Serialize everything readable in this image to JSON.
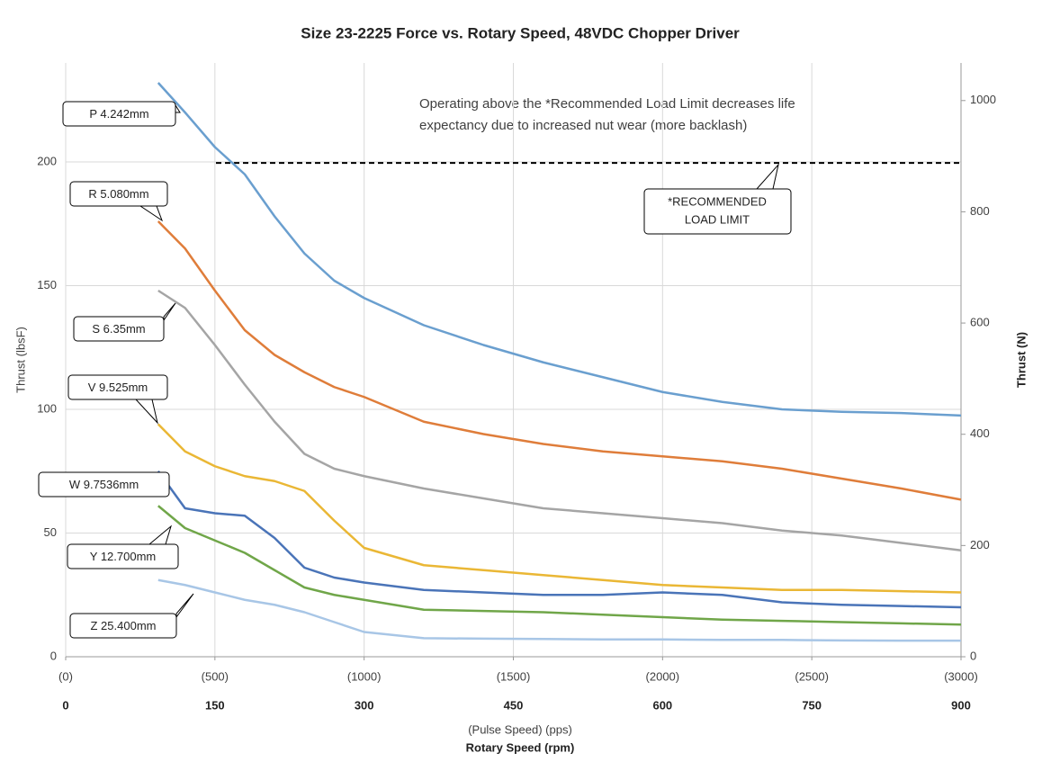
{
  "chart_data": {
    "type": "line",
    "title": "Size 23-2225 Force vs. Rotary Speed, 48VDC Chopper Driver",
    "x_label": "Rotary Speed (rpm)",
    "x2_label": "(Pulse Speed) (pps)",
    "y_label": "Thrust (lbsF)",
    "y2_label": "Thrust (N)",
    "annotation": [
      "Operating above the *Recommended Load Limit decreases life",
      "expectancy due to increased nut wear (more backlash)"
    ],
    "reference_line": {
      "value": 199.6,
      "label": [
        "*RECOMMENDED",
        "LOAD LIMIT"
      ]
    },
    "x": [
      93,
      120,
      150,
      180,
      210,
      240,
      270,
      300,
      360,
      420,
      480,
      540,
      600,
      660,
      720,
      780,
      840,
      900
    ],
    "series": [
      {
        "name": "P 4.242mm",
        "color": "#6a9fcf",
        "values": [
          232,
          220,
          206,
          195,
          178,
          163,
          152,
          145,
          134,
          126,
          119,
          113,
          107,
          103,
          100,
          99,
          98.5,
          97.5
        ]
      },
      {
        "name": "R 5.080mm",
        "color": "#df7d3a",
        "values": [
          176,
          165,
          148,
          132,
          122,
          115,
          109,
          105,
          95,
          90,
          86,
          83,
          81,
          79,
          76,
          72,
          68,
          63.5
        ]
      },
      {
        "name": "S 6.35mm",
        "color": "#a5a5a5",
        "values": [
          148,
          141,
          126,
          110,
          95,
          82,
          76,
          73,
          68,
          64,
          60,
          58,
          56,
          54,
          51,
          49,
          46,
          43
        ]
      },
      {
        "name": "V 9.525mm",
        "color": "#eab735",
        "values": [
          94,
          83,
          77,
          73,
          71,
          67,
          55,
          44,
          37,
          35,
          33,
          31,
          29,
          28,
          27,
          27,
          26.5,
          26
        ]
      },
      {
        "name": "W 9.7536mm",
        "color": "#4a74b8",
        "values": [
          75,
          60,
          58,
          57,
          48,
          36,
          32,
          30,
          27,
          26,
          25,
          25,
          26,
          25,
          22,
          21,
          20.5,
          20
        ]
      },
      {
        "name": "Y 12.700mm",
        "color": "#70a649",
        "values": [
          61,
          52,
          47,
          42,
          35,
          28,
          25,
          23,
          19,
          18.5,
          18,
          17,
          16,
          15,
          14.5,
          14,
          13.5,
          13
        ]
      },
      {
        "name": "Z 25.400mm",
        "color": "#a8c6e6",
        "values": [
          31,
          29,
          26,
          23,
          21,
          18,
          14,
          10,
          7.5,
          7.3,
          7.2,
          7,
          7,
          6.8,
          6.8,
          6.6,
          6.5,
          6.5
        ]
      }
    ],
    "xlim": [
      0,
      900
    ],
    "xticks": [
      0,
      150,
      300,
      450,
      600,
      750,
      900
    ],
    "x2lim": [
      0,
      3000
    ],
    "x2ticks": [
      {
        "value": 0,
        "label": "(0)"
      },
      {
        "value": 500,
        "label": "(500)"
      },
      {
        "value": 1000,
        "label": "(1000)"
      },
      {
        "value": 1500,
        "label": "(1500)"
      },
      {
        "value": 2000,
        "label": "(2000)"
      },
      {
        "value": 2500,
        "label": "(2500)"
      },
      {
        "value": 3000,
        "label": "(3000)"
      }
    ],
    "ylim": [
      0,
      240
    ],
    "yticks": [
      0,
      50,
      100,
      150,
      200
    ],
    "y2lim": [
      0,
      1067.6
    ],
    "y2ticks": [
      0,
      200,
      400,
      600,
      800,
      1000
    ],
    "grid": true
  }
}
